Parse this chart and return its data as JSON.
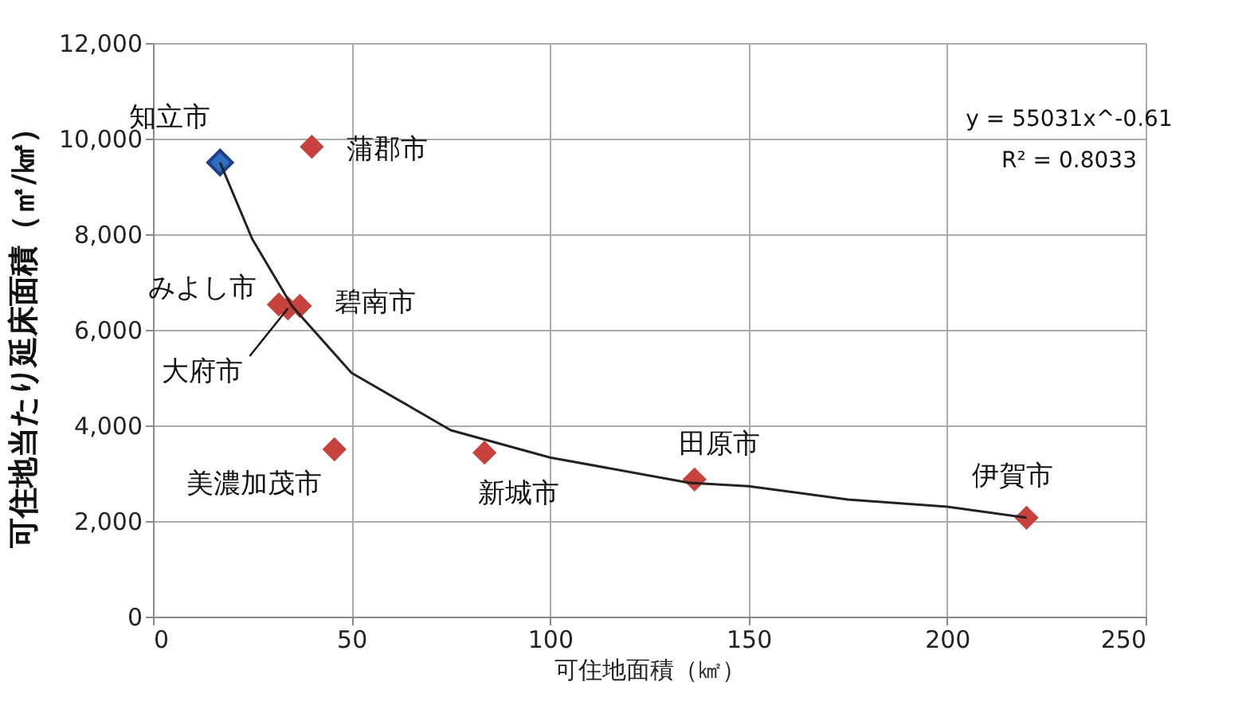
{
  "chart_data": {
    "type": "scatter",
    "xlabel": "可住地面積（㎢）",
    "ylabel": "可住地当たり延床面積（㎡/㎢）",
    "xlim": [
      0,
      250
    ],
    "xticks": [
      0,
      50,
      100,
      150,
      200,
      250
    ],
    "ylim": [
      0,
      12000
    ],
    "yticks": [
      {
        "value": 0,
        "label": "0"
      },
      {
        "value": 2000,
        "label": "2,000"
      },
      {
        "value": 4000,
        "label": "4,000"
      },
      {
        "value": 6000,
        "label": "6,000"
      },
      {
        "value": 8000,
        "label": "8,000"
      },
      {
        "value": 10000,
        "label": "10,000"
      },
      {
        "value": 12000,
        "label": "12,000"
      }
    ],
    "grid": true,
    "marker": "diamond",
    "series": [
      {
        "x": [
          16.9,
          40,
          31.7,
          34,
          37,
          45.7,
          83.5,
          136.4,
          220
        ],
        "values": [
          9500,
          9830,
          6530,
          6450,
          6500,
          3500,
          3430,
          2870,
          2070
        ],
        "colors": [
          "#2e6ec0",
          "#c8413c",
          "#c8413c",
          "#c8413c",
          "#c8413c",
          "#c8413c",
          "#c8413c",
          "#c8413c",
          "#c8413c"
        ]
      },
      {
        "type": "line",
        "color": "#222222",
        "marker": "none",
        "line_style": "solid",
        "x": [
          16.9,
          25,
          35,
          50,
          75,
          100,
          135,
          150,
          175,
          200,
          220
        ],
        "values": [
          9500,
          7900,
          6500,
          5100,
          3900,
          3330,
          2800,
          2730,
          2450,
          2300,
          2070
        ]
      }
    ],
    "annotations": [
      {
        "text": "知立市",
        "x": 16.9,
        "y": 9500
      },
      {
        "text": "蒲郡市",
        "x": 40,
        "y": 9830
      },
      {
        "text": "みよし市",
        "x": 31.7,
        "y": 6530
      },
      {
        "text": "大府市",
        "x": 34,
        "y": 6450
      },
      {
        "text": "碧南市",
        "x": 37,
        "y": 6500
      },
      {
        "text": "美濃加茂市",
        "x": 45.7,
        "y": 3500
      },
      {
        "text": "新城市",
        "x": 83.5,
        "y": 3430
      },
      {
        "text": "田原市",
        "x": 136.4,
        "y": 2870
      },
      {
        "text": "伊賀市",
        "x": 220,
        "y": 2070
      },
      "y = 55031x^-0.61",
      "R² = 0.8033"
    ]
  }
}
